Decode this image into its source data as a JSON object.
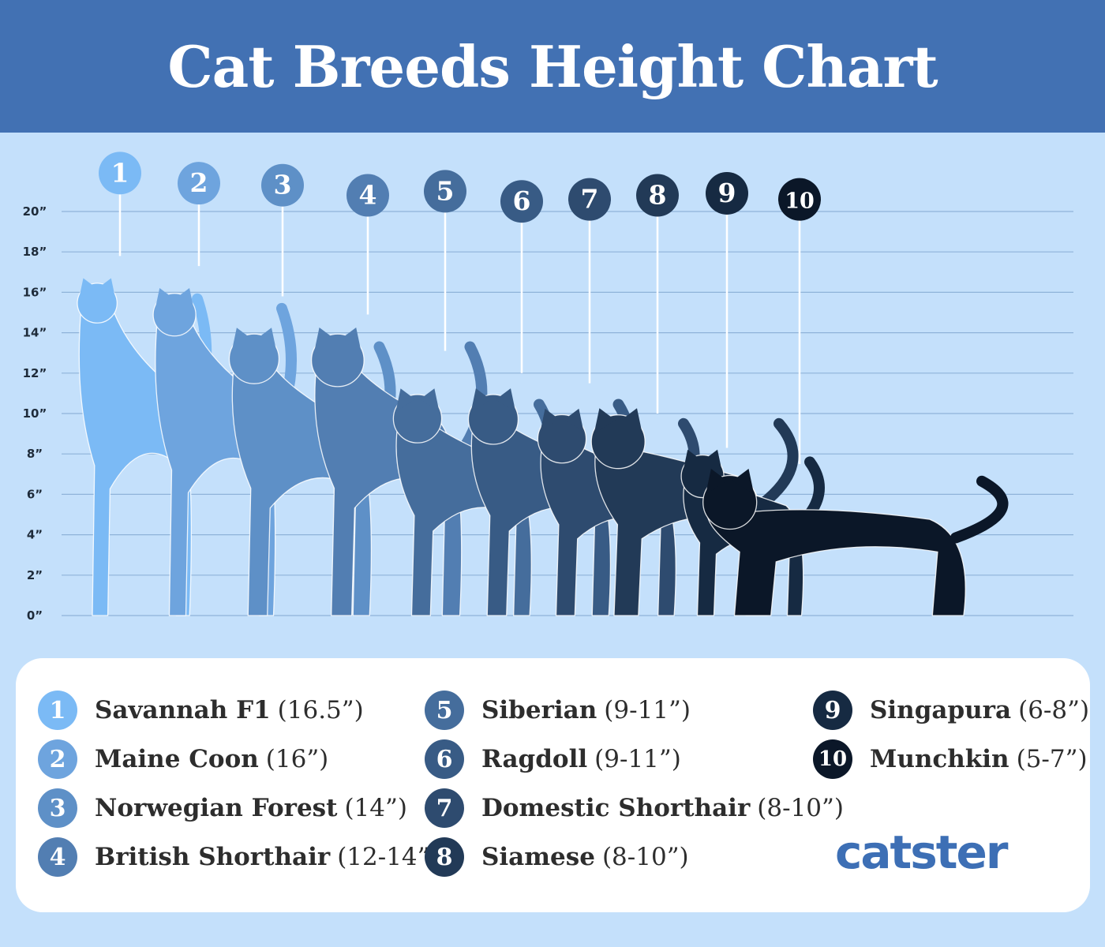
{
  "header": {
    "title": "Cat Breeds Height Chart"
  },
  "chart_data": {
    "type": "bar",
    "title": "Cat Breeds Height Chart",
    "ylabel": "",
    "xlabel": "",
    "unit": "inches",
    "ylim": [
      0,
      20
    ],
    "yticks": [
      "0”",
      "2”",
      "4”",
      "6”",
      "8”",
      "10”",
      "12”",
      "14”",
      "16”",
      "18”",
      "20”"
    ],
    "grid": true,
    "categories": [
      "1",
      "2",
      "3",
      "4",
      "5",
      "6",
      "7",
      "8",
      "9",
      "10"
    ],
    "series": [
      {
        "name": "",
        "values": [
          16.5,
          16,
          14,
          12,
          11,
          11,
          10,
          10,
          8,
          7
        ]
      }
    ],
    "breeds": [
      {
        "num": "1",
        "name": "Savannah F1",
        "range": "(16.5”)",
        "min": 16.5,
        "max": 16.5,
        "marker": 17.8,
        "badge_y": 21.9,
        "color": "#7bbaf5"
      },
      {
        "num": "2",
        "name": "Maine Coon",
        "range": "(16”)",
        "min": 16,
        "max": 16,
        "marker": 17.3,
        "badge_y": 21.4,
        "color": "#6ea4de"
      },
      {
        "num": "3",
        "name": "Norwegian Forest",
        "range": "(14”)",
        "min": 14,
        "max": 14,
        "marker": 15.8,
        "badge_y": 21.3,
        "color": "#5e90c7"
      },
      {
        "num": "4",
        "name": "British Shorthair",
        "range": "(12-14”)",
        "min": 12,
        "max": 14,
        "marker": 14.9,
        "badge_y": 20.8,
        "color": "#527eb2"
      },
      {
        "num": "5",
        "name": "Siberian",
        "range": "(9-11”)",
        "min": 9,
        "max": 11,
        "marker": 13.1,
        "badge_y": 21.0,
        "color": "#456d9c"
      },
      {
        "num": "6",
        "name": "Ragdoll",
        "range": "(9-11”)",
        "min": 9,
        "max": 11,
        "marker": 12.0,
        "badge_y": 20.5,
        "color": "#385b85"
      },
      {
        "num": "7",
        "name": "Domestic Shorthair",
        "range": "(8-10”)",
        "min": 8,
        "max": 10,
        "marker": 11.5,
        "badge_y": 20.6,
        "color": "#2e4b6f"
      },
      {
        "num": "8",
        "name": "Siamese",
        "range": "(8-10”)",
        "min": 8,
        "max": 10,
        "marker": 10.0,
        "badge_y": 20.8,
        "color": "#223a57"
      },
      {
        "num": "9",
        "name": "Singapura",
        "range": "(6-8”)",
        "min": 6,
        "max": 8,
        "marker": 8.3,
        "badge_y": 20.9,
        "color": "#162a42"
      },
      {
        "num": "10",
        "name": "Munchkin",
        "range": "(5-7”)",
        "min": 5,
        "max": 7,
        "marker": 7.5,
        "badge_y": 20.6,
        "color": "#0b1728"
      }
    ]
  },
  "colors": {
    "header_bg": "#4271b3",
    "chart_bg": "#c4e0fb",
    "grid": "#8fb3d9",
    "brand": "#3d6fb5"
  },
  "brand": {
    "name": "catster"
  }
}
